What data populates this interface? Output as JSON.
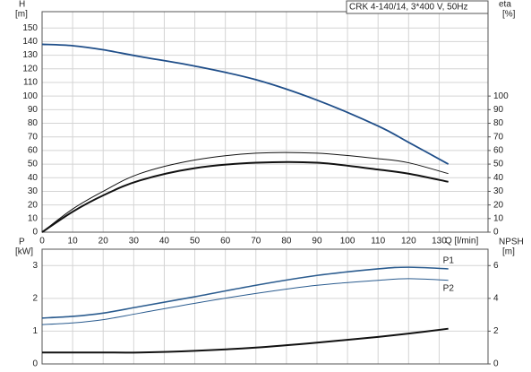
{
  "chart_data": [
    {
      "type": "line",
      "title": "CRK 4-140/14, 3*400 V, 50Hz",
      "x_label": "Q [l/min]",
      "y_label": "H",
      "y_unit": "[m]",
      "y2_label": "eta",
      "y2_unit": "[%]",
      "x": [
        0,
        10,
        20,
        32,
        50,
        70,
        90,
        110,
        120,
        133
      ],
      "xlim": [
        0,
        146
      ],
      "xticks": [
        0,
        10,
        20,
        30,
        40,
        50,
        60,
        70,
        80,
        90,
        100,
        110,
        120,
        130
      ],
      "ylim": [
        0,
        162
      ],
      "yticks": [
        0,
        10,
        20,
        30,
        40,
        50,
        60,
        70,
        80,
        90,
        100,
        110,
        120,
        130,
        140,
        150
      ],
      "y2lim": [
        0,
        162
      ],
      "y2ticks": [
        0,
        10,
        20,
        30,
        40,
        50,
        60,
        70,
        80,
        90,
        100
      ],
      "grid": true,
      "series": [
        {
          "color": "#1f4e89",
          "line_width": 1.8,
          "values": [
            138,
            137,
            134,
            129,
            122,
            112,
            97,
            78,
            66,
            50
          ]
        },
        {
          "color": "#111111",
          "line_width": 1,
          "axis": "y2",
          "values": [
            0,
            17,
            30,
            43,
            53,
            58,
            58,
            54,
            51,
            43
          ]
        },
        {
          "color": "#111111",
          "line_width": 2,
          "axis": "y2",
          "values": [
            0,
            15,
            27,
            38,
            47,
            51,
            51,
            46,
            43,
            37
          ]
        }
      ]
    },
    {
      "type": "line",
      "y_label": "P",
      "y_unit": "[kW]",
      "y2_label": "NPSH",
      "y2_unit": "[m]",
      "x": [
        0,
        10,
        20,
        32,
        50,
        70,
        90,
        110,
        120,
        133
      ],
      "xlim": [
        0,
        146
      ],
      "xticks": [
        0,
        10,
        20,
        30,
        40,
        50,
        60,
        70,
        80,
        90,
        100,
        110,
        120,
        130
      ],
      "ylim": [
        0,
        3.5
      ],
      "yticks": [
        0,
        1,
        2,
        3
      ],
      "y2lim": [
        0,
        7
      ],
      "y2ticks": [
        0,
        2,
        4,
        6
      ],
      "grid": true,
      "series": [
        {
          "name": "P1",
          "color": "#2b5c8f",
          "line_width": 1.6,
          "values": [
            1.4,
            1.45,
            1.55,
            1.75,
            2.05,
            2.4,
            2.7,
            2.9,
            2.95,
            2.9
          ]
        },
        {
          "name": "P2",
          "color": "#2b5c8f",
          "line_width": 1,
          "values": [
            1.2,
            1.25,
            1.35,
            1.55,
            1.85,
            2.15,
            2.4,
            2.55,
            2.6,
            2.55
          ]
        },
        {
          "color": "#111111",
          "line_width": 2,
          "axis": "y2",
          "values": [
            0.7,
            0.7,
            0.7,
            0.7,
            0.8,
            1.0,
            1.3,
            1.65,
            1.85,
            2.15
          ]
        }
      ]
    }
  ]
}
